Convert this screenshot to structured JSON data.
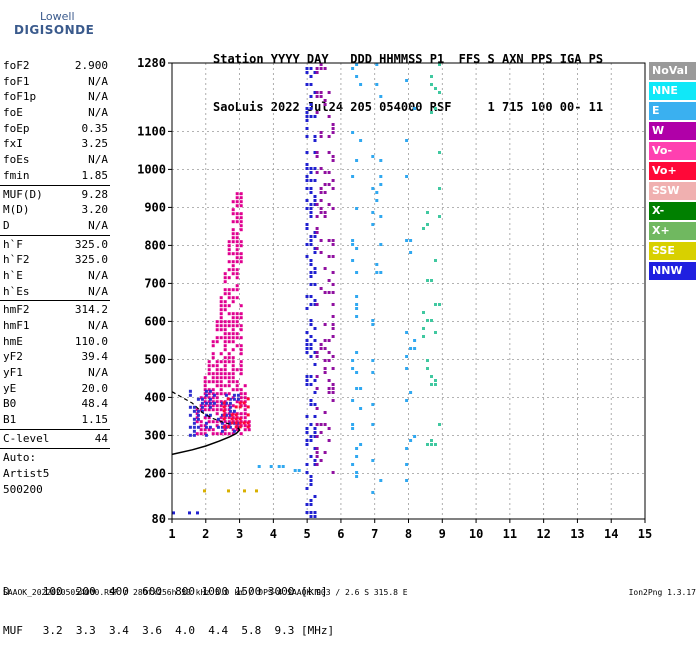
{
  "logo": {
    "line1": "Lowell",
    "line2": "DIGISONDE"
  },
  "header": {
    "line1": "Station YYYY DAY   DDD HHMMSS P1  FFS S AXN PPS IGA PS",
    "line2": "SaoLuis 2022 Jul24 205 054000 RSF     1 715 100 00- 11"
  },
  "params": {
    "group1": [
      {
        "k": "foF2",
        "v": "2.900"
      },
      {
        "k": "foF1",
        "v": "N/A"
      },
      {
        "k": "foF1p",
        "v": "N/A"
      },
      {
        "k": "foE",
        "v": "N/A"
      },
      {
        "k": "foEp",
        "v": "0.35"
      },
      {
        "k": "fxI",
        "v": "3.25"
      },
      {
        "k": "foEs",
        "v": "N/A"
      },
      {
        "k": "fmin",
        "v": "1.85"
      }
    ],
    "group2": [
      {
        "k": "MUF(D)",
        "v": "9.28"
      },
      {
        "k": "M(D)",
        "v": "3.20"
      },
      {
        "k": "D",
        "v": "N/A"
      }
    ],
    "group3": [
      {
        "k": "h`F",
        "v": "325.0"
      },
      {
        "k": "h`F2",
        "v": "325.0"
      },
      {
        "k": "h`E",
        "v": "N/A"
      },
      {
        "k": "h`Es",
        "v": "N/A"
      }
    ],
    "group4": [
      {
        "k": "hmF2",
        "v": "314.2"
      },
      {
        "k": "hmF1",
        "v": "N/A"
      },
      {
        "k": "hmE",
        "v": "110.0"
      },
      {
        "k": "yF2",
        "v": "39.4"
      },
      {
        "k": "yF1",
        "v": "N/A"
      },
      {
        "k": "yE",
        "v": "20.0"
      },
      {
        "k": "B0",
        "v": "48.4"
      },
      {
        "k": "B1",
        "v": "1.15"
      }
    ],
    "clevel": {
      "k": "C-level",
      "v": "44"
    },
    "auto": [
      "Auto:",
      "Artist5",
      "500200"
    ]
  },
  "legend": [
    {
      "label": "NoVal",
      "color": "#9a9a9a"
    },
    {
      "label": "NNE",
      "color": "#10e8f8"
    },
    {
      "label": "E",
      "color": "#3ab0f0"
    },
    {
      "label": "W",
      "color": "#b000a8"
    },
    {
      "label": "Vo-",
      "color": "#ff40b0"
    },
    {
      "label": "Vo+",
      "color": "#ff0838"
    },
    {
      "label": "SSW",
      "color": "#f0b0b0"
    },
    {
      "label": "X-",
      "color": "#008000"
    },
    {
      "label": "X+",
      "color": "#70b860"
    },
    {
      "label": "SSE",
      "color": "#d8d000"
    },
    {
      "label": "NNW",
      "color": "#2020e0"
    }
  ],
  "scale": {
    "line1": "D     100  200  400  600  800 1000 1500 3000 [km]",
    "line2": "MUF   3.2  3.3  3.4  3.6  4.0  4.4  5.8  9.3 [MHz]"
  },
  "footer": {
    "text": "SAAOK_20220205054000.RSF / 280fx256h 50 kHz 5.0 km / DPS-4 SAAOK 903 / 2.6 S 315.8 E",
    "version": "Ion2Png 1.3.17"
  },
  "chart_data": {
    "type": "scatter",
    "xlim": [
      1,
      15
    ],
    "ylim": [
      80,
      1280
    ],
    "xticks": [
      "1",
      "2",
      "3",
      "4",
      "5",
      "6",
      "7",
      "8",
      "9",
      "10",
      "11",
      "12",
      "13",
      "14",
      "15"
    ],
    "yticks": [
      "80",
      "200",
      "300",
      "400",
      "500",
      "600",
      "700",
      "800",
      "900",
      "1000",
      "1100",
      "1280"
    ],
    "grid": "dashed",
    "legend_placement": "right",
    "regions": [
      {
        "x": [
          1.7,
          3.7
        ],
        "y": [
          300,
          940
        ],
        "shape": "trace",
        "color": "#e00090",
        "density": 0.65
      },
      {
        "x": [
          1.5,
          3.0
        ],
        "y": [
          300,
          420
        ],
        "shape": "box",
        "color": "#3030d0",
        "density": 0.35
      },
      {
        "x": [
          2.5,
          3.3
        ],
        "y": [
          320,
          400
        ],
        "shape": "box",
        "color": "#ff0838",
        "density": 0.45
      },
      {
        "x": [
          4.95,
          5.25
        ],
        "y": [
          80,
          1280
        ],
        "shape": "box",
        "color": "#2020d0",
        "density": 0.35
      },
      {
        "x": [
          5.25,
          5.75
        ],
        "y": [
          200,
          1280
        ],
        "shape": "box",
        "color": "#9010a0",
        "density": 0.18
      },
      {
        "x": [
          6.3,
          6.6
        ],
        "y": [
          150,
          1280
        ],
        "shape": "box",
        "color": "#30a8f0",
        "density": 0.08
      },
      {
        "x": [
          6.9,
          7.2
        ],
        "y": [
          150,
          1280
        ],
        "shape": "box",
        "color": "#30a8f0",
        "density": 0.08
      },
      {
        "x": [
          7.9,
          8.2
        ],
        "y": [
          130,
          1280
        ],
        "shape": "box",
        "color": "#30a8f0",
        "density": 0.07
      },
      {
        "x": [
          8.4,
          8.9
        ],
        "y": [
          250,
          1280
        ],
        "shape": "box",
        "color": "#40c8a0",
        "density": 0.07
      },
      {
        "x": [
          3.3,
          4.8
        ],
        "y": [
          205,
          222
        ],
        "shape": "box",
        "color": "#30a8f0",
        "density": 0.25
      },
      {
        "x": [
          1.8,
          3.8
        ],
        "y": [
          150,
          158
        ],
        "shape": "box",
        "color": "#d8b000",
        "density": 0.35
      },
      {
        "x": [
          1.0,
          1.8
        ],
        "y": [
          90,
          100
        ],
        "shape": "box",
        "color": "#2020d0",
        "density": 0.6
      }
    ],
    "profile_solid": [
      [
        1.0,
        250
      ],
      [
        1.6,
        262
      ],
      [
        2.0,
        272
      ],
      [
        2.4,
        285
      ],
      [
        2.7,
        296
      ],
      [
        2.9,
        305
      ],
      [
        3.0,
        314
      ],
      [
        2.95,
        320
      ]
    ],
    "profile_dashed": [
      [
        1.0,
        415
      ],
      [
        1.3,
        400
      ],
      [
        1.6,
        385
      ],
      [
        1.9,
        360
      ],
      [
        2.2,
        345
      ],
      [
        2.5,
        335
      ],
      [
        2.7,
        330
      ]
    ]
  }
}
